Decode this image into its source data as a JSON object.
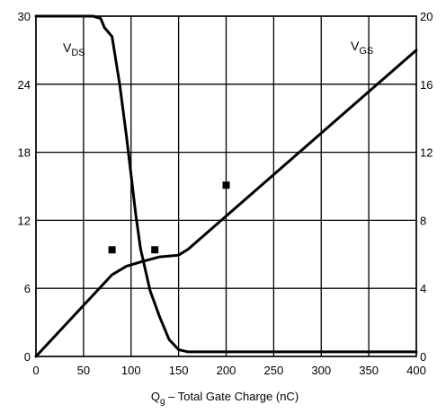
{
  "chart_data": {
    "type": "line",
    "xlabel": {
      "prefix": "Q",
      "sub": "g",
      "suffix": " – Total Gate Charge (nC)"
    },
    "xlim": [
      0,
      400
    ],
    "x_ticks": [
      0,
      50,
      100,
      150,
      200,
      250,
      300,
      350,
      400
    ],
    "y_left": {
      "lim": [
        0,
        30
      ],
      "ticks": [
        0,
        6,
        12,
        18,
        24,
        30
      ]
    },
    "y_right": {
      "lim": [
        0,
        20
      ],
      "ticks": [
        0,
        4,
        8,
        12,
        16,
        20
      ]
    },
    "grid": true,
    "series": [
      {
        "name": {
          "main": "V",
          "sub": "DS"
        },
        "axis": "left",
        "x": [
          0,
          60,
          68,
          72,
          80,
          88,
          95,
          100,
          105,
          110,
          120,
          130,
          140,
          150,
          160,
          200,
          300,
          400
        ],
        "y": [
          30,
          30,
          29.8,
          29,
          28.2,
          24,
          19.5,
          16,
          12.5,
          9.5,
          5.8,
          3.5,
          1.5,
          0.6,
          0.4,
          0.4,
          0.4,
          0.4
        ]
      },
      {
        "name": {
          "main": "V",
          "sub": "GS"
        },
        "axis": "right",
        "x": [
          0,
          80,
          95,
          110,
          130,
          150,
          160,
          400
        ],
        "y": [
          0,
          4.8,
          5.3,
          5.55,
          5.85,
          5.95,
          6.3,
          18
        ]
      }
    ],
    "markers": [
      {
        "x": 80,
        "y": 9.4
      },
      {
        "x": 125,
        "y": 9.4
      },
      {
        "x": 200,
        "y": 15.1
      }
    ]
  }
}
